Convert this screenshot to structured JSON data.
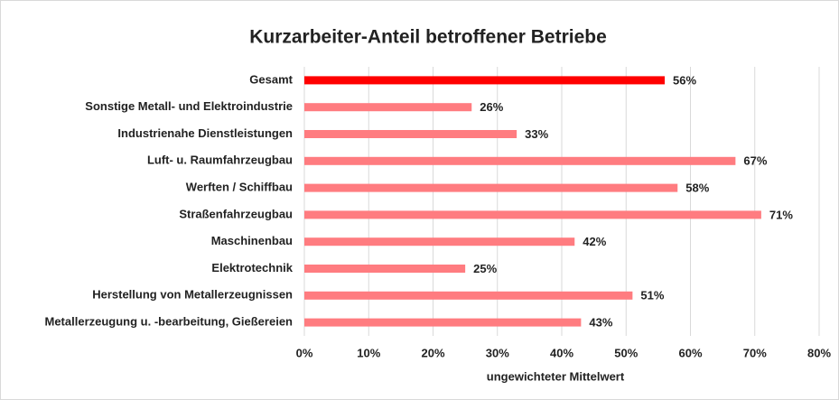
{
  "chart_data": {
    "type": "barh",
    "title": "Kurzarbeiter-Anteil betroffener Betriebe",
    "x_label": "ungewichteter Mittelwert",
    "categories": [
      "Gesamt",
      "Sonstige Metall- und Elektroindustrie",
      "Industrienahe Dienstleistungen",
      "Luft- u. Raumfahrzeugbau",
      "Werften / Schiffbau",
      "Straßenfahrzeugbau",
      "Maschinenbau",
      "Elektrotechnik",
      "Herstellung von Metallerzeugnissen",
      "Metallerzeugung u. -bearbeitung, Gießereien"
    ],
    "values": [
      56,
      26,
      33,
      67,
      58,
      71,
      42,
      25,
      51,
      43
    ],
    "value_labels": [
      "56%",
      "26%",
      "33%",
      "67%",
      "58%",
      "71%",
      "42%",
      "25%",
      "51%",
      "43%"
    ],
    "colors": [
      "#ff0000",
      "#ff7c80",
      "#ff7c80",
      "#ff7c80",
      "#ff7c80",
      "#ff7c80",
      "#ff7c80",
      "#ff7c80",
      "#ff7c80",
      "#ff7c80"
    ],
    "xlim": [
      0,
      80
    ],
    "xticks": [
      {
        "value": 0,
        "label": "0%"
      },
      {
        "value": 10,
        "label": "10%"
      },
      {
        "value": 20,
        "label": "20%"
      },
      {
        "value": 30,
        "label": "30%"
      },
      {
        "value": 40,
        "label": "40%"
      },
      {
        "value": 50,
        "label": "50%"
      },
      {
        "value": 60,
        "label": "60%"
      },
      {
        "value": 70,
        "label": "70%"
      },
      {
        "value": 80,
        "label": "80%"
      }
    ],
    "grid": true
  }
}
